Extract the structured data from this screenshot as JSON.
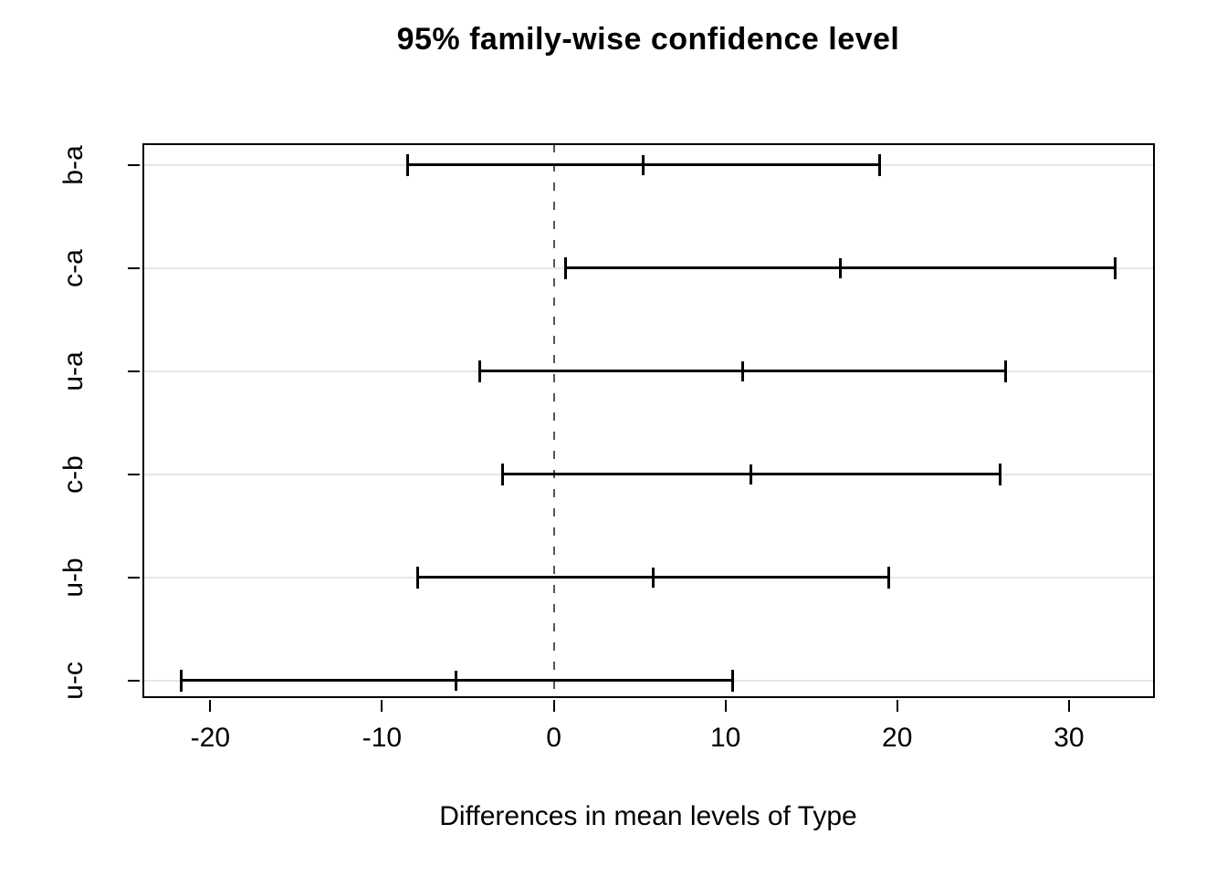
{
  "chart_data": {
    "type": "ci_interval",
    "orientation": "horizontal",
    "title": "95% family-wise confidence level",
    "xlabel": "Differences in mean levels of Type",
    "ylabel": "",
    "categories": [
      "b-a",
      "c-a",
      "u-a",
      "c-b",
      "u-b",
      "u-c"
    ],
    "series": [
      {
        "name": "b-a",
        "lower": -8.5,
        "center": 5.2,
        "upper": 19.0
      },
      {
        "name": "c-a",
        "lower": 0.7,
        "center": 16.7,
        "upper": 32.7
      },
      {
        "name": "u-a",
        "lower": -4.3,
        "center": 11.0,
        "upper": 26.3
      },
      {
        "name": "c-b",
        "lower": -3.0,
        "center": 11.5,
        "upper": 26.0
      },
      {
        "name": "u-b",
        "lower": -7.9,
        "center": 5.8,
        "upper": 19.5
      },
      {
        "name": "u-c",
        "lower": -21.7,
        "center": -5.7,
        "upper": 10.4
      }
    ],
    "x_ticks": [
      -20,
      -10,
      0,
      10,
      20,
      30
    ],
    "xlim": [
      -23.9,
      34.9
    ],
    "reference_line": {
      "x": 0,
      "style": "dashed"
    },
    "grid": {
      "horizontal": true
    },
    "legend": "none",
    "colors": {
      "background": "#ffffff",
      "interval": "#000000",
      "axis": "#000000",
      "text": "#000000",
      "gridline": "#e6e6e6",
      "reference_line": "#555555"
    }
  }
}
